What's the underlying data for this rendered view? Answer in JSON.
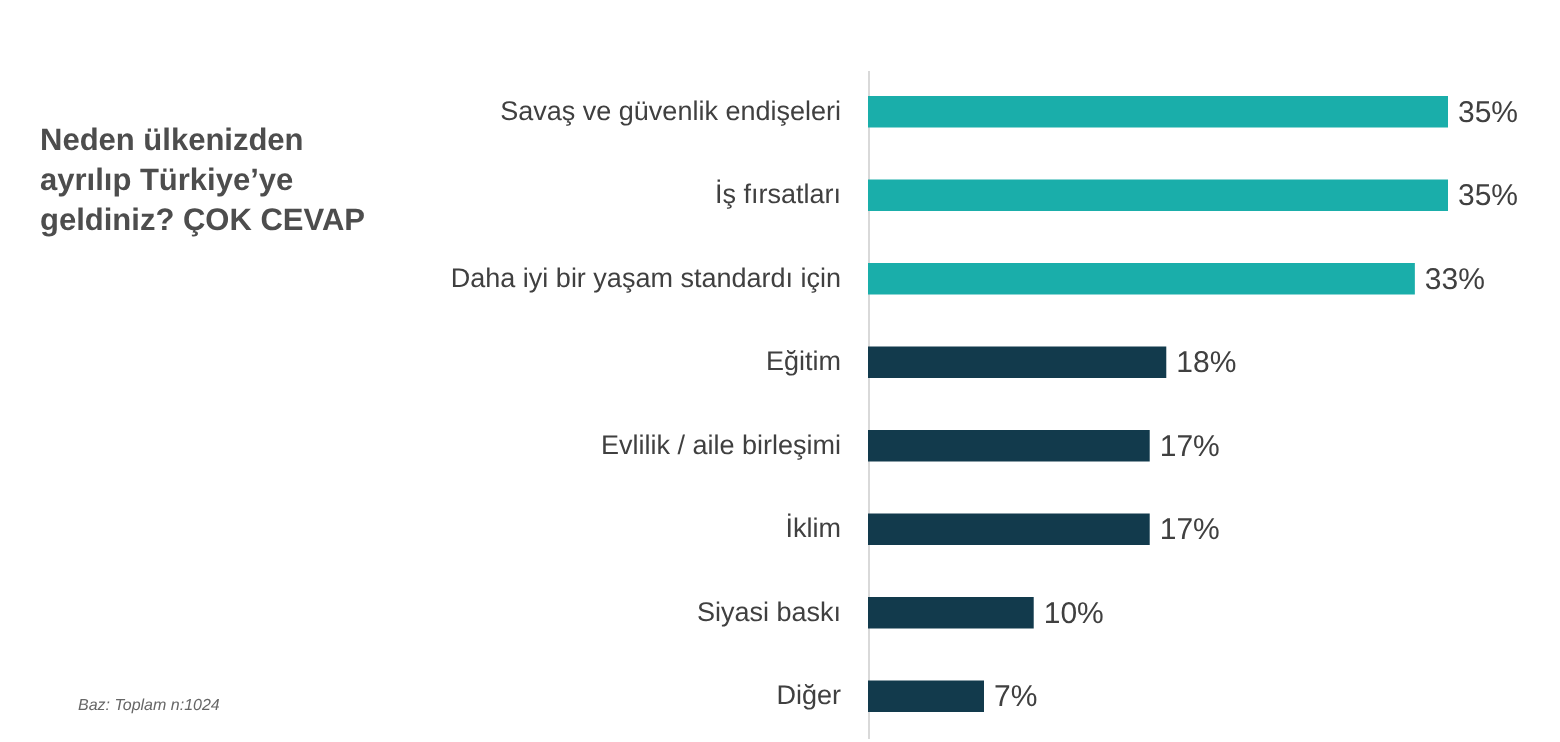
{
  "chart_data": {
    "type": "bar",
    "orientation": "horizontal",
    "title": "Neden ülkenizden ayrılıp Türkiye’ye geldiniz? ÇOK CEVAP",
    "categories": [
      "Savaş ve güvenlik endişeleri",
      "İş fırsatları",
      "Daha iyi bir yaşam standardı için",
      "Eğitim",
      "Evlilik / aile birleşimi",
      "İklim",
      "Siyasi baskı",
      "Diğer"
    ],
    "values": [
      35,
      35,
      33,
      18,
      17,
      17,
      10,
      7
    ],
    "colors": [
      "#1aaeaa",
      "#1aaeaa",
      "#1aaeaa",
      "#123a4c",
      "#123a4c",
      "#123a4c",
      "#123a4c",
      "#123a4c"
    ],
    "value_labels": [
      "35%",
      "35%",
      "33%",
      "18%",
      "17%",
      "17%",
      "10%",
      "7%"
    ],
    "annotations": [
      "Baz: Toplam n:1024"
    ]
  }
}
